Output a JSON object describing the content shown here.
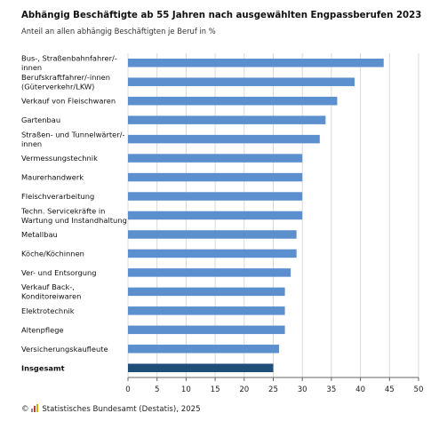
{
  "title": "Abhängig Beschäftigte ab 55 Jahren nach ausgewählten Engpassberufen 2023",
  "subtitle": "Anteil an allen abhängig Beschäftigten je Beruf in %",
  "source": "Statistisches Bundesamt (Destatis), 2025",
  "colors": {
    "bar": "#5b8fce",
    "total": "#1f4e79",
    "grid": "#d9d9d9",
    "axis": "#666666"
  },
  "chart_data": {
    "type": "bar",
    "orientation": "horizontal",
    "categories": [
      [
        "Bus-, Straßenbahnfahrer/-",
        "innen"
      ],
      [
        "Berufskraftfahrer/-innen",
        "(Güterverkehr/LKW)"
      ],
      [
        "Verkauf von Fleischwaren"
      ],
      [
        "Gartenbau"
      ],
      [
        "Straßen- und Tunnelwärter/-",
        "innen"
      ],
      [
        "Vermessungstechnik"
      ],
      [
        "Maurerhandwerk"
      ],
      [
        "Fleischverarbeitung"
      ],
      [
        "Techn. Servicekräfte in",
        "Wartung und Instandhaltung"
      ],
      [
        "Metallbau"
      ],
      [
        "Köche/Köchinnen"
      ],
      [
        "Ver- und Entsorgung"
      ],
      [
        "Verkauf Back-,",
        "Konditoreiwaren"
      ],
      [
        "Elektrotechnik"
      ],
      [
        "Altenpflege"
      ],
      [
        "Versicherungskaufleute"
      ],
      [
        "Insgesamt"
      ]
    ],
    "values": [
      44,
      39,
      36,
      34,
      33,
      30,
      30,
      30,
      30,
      29,
      29,
      28,
      27,
      27,
      27,
      26,
      25
    ],
    "highlight": "Insgesamt",
    "xlim": [
      0,
      50
    ],
    "xticks": [
      0,
      5,
      10,
      15,
      20,
      25,
      30,
      35,
      40,
      45,
      50
    ],
    "grid": "vertical"
  }
}
